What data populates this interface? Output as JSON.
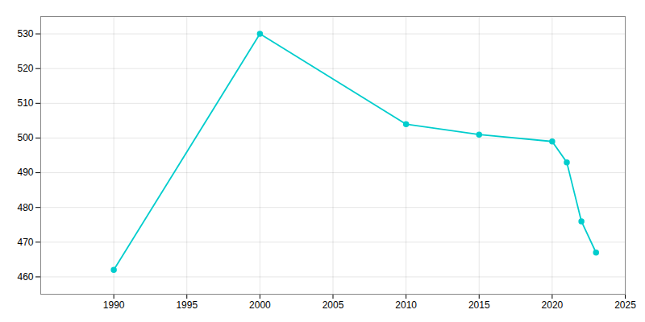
{
  "chart_data": {
    "type": "line",
    "x": [
      1990,
      2000,
      2010,
      2015,
      2020,
      2021,
      2022,
      2023
    ],
    "values": [
      462,
      530,
      504,
      501,
      499,
      493,
      476,
      467
    ],
    "color": "#00CDCD",
    "marker": "circle",
    "xlim": [
      1985,
      2025
    ],
    "xticks": [
      1990,
      1995,
      2000,
      2005,
      2010,
      2015,
      2020,
      2025
    ],
    "ylim": [
      455,
      535
    ],
    "yticks": [
      460,
      470,
      480,
      490,
      500,
      510,
      520,
      530
    ],
    "grid": true
  }
}
